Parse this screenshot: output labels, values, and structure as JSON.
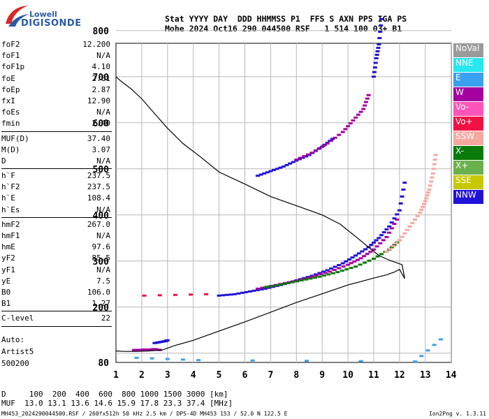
{
  "logo": {
    "line1": "Lowell",
    "line2": "DIGISONDE"
  },
  "header": {
    "line1": "Stat YYYY DAY  DDD HHMMSS P1  FFS S AXN PPS IGA PS",
    "line2": "Mohe 2024 Oct16 290 044500 RSF   1 514 100 03+ B1"
  },
  "params": [
    {
      "k": "foF2",
      "v": "12.200"
    },
    {
      "k": "foF1",
      "v": "N/A"
    },
    {
      "k": "foF1p",
      "v": "4.10"
    },
    {
      "k": "foE",
      "v": "2.81"
    },
    {
      "k": "foEp",
      "v": "2.87"
    },
    {
      "k": "fxI",
      "v": "12.90"
    },
    {
      "k": "foEs",
      "v": "N/A"
    },
    {
      "k": "fmin",
      "v": "2.40",
      "sep": true
    },
    {
      "k": "MUF(D)",
      "v": "37.40"
    },
    {
      "k": "M(D)",
      "v": "3.07"
    },
    {
      "k": "D",
      "v": "N/A",
      "sep": true
    },
    {
      "k": "h`F",
      "v": "237.5"
    },
    {
      "k": "h`F2",
      "v": "237.5"
    },
    {
      "k": "h`E",
      "v": "108.4"
    },
    {
      "k": "h`Es",
      "v": "N/A",
      "sep": true
    },
    {
      "k": "hmF2",
      "v": "267.0"
    },
    {
      "k": "hmF1",
      "v": "N/A"
    },
    {
      "k": "hmE",
      "v": "97.6"
    },
    {
      "k": "yF2",
      "v": "85.5"
    },
    {
      "k": "yF1",
      "v": "N/A"
    },
    {
      "k": "yE",
      "v": "7.5"
    },
    {
      "k": "B0",
      "v": "106.0"
    },
    {
      "k": "B1",
      "v": "1.27",
      "sep": true
    },
    {
      "k": "C-level",
      "v": "22",
      "sep": true
    }
  ],
  "auto": {
    "line1": "Auto:",
    "line2": "Artist5",
    "line3": "500200"
  },
  "legend": [
    {
      "label": "NoVal",
      "color": "#9a9a9a"
    },
    {
      "label": "NNE",
      "color": "#26e8ee"
    },
    {
      "label": "E",
      "color": "#3aa0f0"
    },
    {
      "label": "W",
      "color": "#a3009f"
    },
    {
      "label": "Vo-",
      "color": "#ff55b8"
    },
    {
      "label": "Vo+",
      "color": "#f01044"
    },
    {
      "label": "SSW",
      "color": "#f6a8a0"
    },
    {
      "label": "X-",
      "color": "#0a7a0a"
    },
    {
      "label": "X+",
      "color": "#6ab04c"
    },
    {
      "label": "SSE",
      "color": "#c8c800"
    },
    {
      "label": "NNW",
      "color": "#2012d6"
    }
  ],
  "muf_table": {
    "line1": "D     100  200  400  600  800 1000 1500 3000 [km]",
    "line2": "MUF  13.0 13.1 13.6 14.6 15.9 17.8 23.3 37.4 [MHz]"
  },
  "footer": {
    "left": "MH453_2024290044500.RSF / 260fx512h 50 kHz 2.5 km / DPS-4D MH453 153 / 52.0 N 122.5 E",
    "right": "Ion2Png v. 1.3.11"
  },
  "chart_data": {
    "type": "scatter",
    "xlim": [
      1,
      14
    ],
    "ylim": [
      80,
      900
    ],
    "x_ticks": [
      "1",
      "2",
      "3",
      "4",
      "5",
      "6",
      "7",
      "8",
      "9",
      "10",
      "11",
      "12",
      "13",
      "14"
    ],
    "y_ticks": [
      "80",
      "100",
      "200",
      "300",
      "400",
      "500",
      "600",
      "700",
      "800",
      "900"
    ],
    "grid": true,
    "profile_curve": {
      "x": [
        1.0,
        1.3,
        1.8,
        2.3,
        2.8,
        3.1,
        3.3,
        4.0,
        5.0,
        6.0,
        7.0,
        8.0,
        9.0,
        10.0,
        11.0,
        11.5,
        11.8,
        12.0,
        12.2,
        12.1,
        11.6,
        11.2,
        10.8,
        10.3,
        9.7,
        9.0,
        8.0,
        7.0,
        6.0,
        5.0,
        4.3,
        3.6,
        3.0,
        2.5,
        2.0,
        1.6,
        1.2,
        1.0
      ],
      "y": [
        105,
        104,
        104,
        105,
        107,
        113,
        117,
        128,
        148,
        168,
        189,
        210,
        229,
        248,
        263,
        270,
        276,
        282,
        262,
        292,
        302,
        312,
        330,
        353,
        380,
        400,
        420,
        440,
        467,
        493,
        525,
        555,
        588,
        620,
        652,
        673,
        690,
        700
      ]
    },
    "series": [
      {
        "name": "W",
        "x": [
          1.7,
          1.9,
          2.1,
          2.3,
          2.5,
          2.7
        ],
        "y": [
          107,
          107,
          108,
          108,
          109,
          107
        ]
      },
      {
        "name": "NNW",
        "x": [
          2.5,
          2.7,
          2.9,
          3.0
        ],
        "y": [
          122,
          124,
          126,
          128
        ]
      },
      {
        "name": "NNW",
        "x": [
          5.0,
          5.6,
          6.2,
          6.8,
          7.4,
          8.0,
          8.6,
          9.2,
          9.8,
          10.3,
          10.8,
          11.2,
          11.6,
          12.0,
          12.2
        ],
        "y": [
          225,
          228,
          234,
          240,
          248,
          258,
          268,
          280,
          295,
          312,
          330,
          350,
          375,
          410,
          470
        ]
      },
      {
        "name": "W",
        "x": [
          6.5,
          7.2,
          7.9,
          8.6,
          9.3,
          10.0,
          10.5,
          11.0,
          11.5,
          11.9
        ],
        "y": [
          240,
          248,
          256,
          266,
          277,
          292,
          306,
          325,
          352,
          390
        ]
      },
      {
        "name": "X-",
        "x": [
          6.8,
          7.5,
          8.2,
          8.9,
          9.6,
          10.3,
          11.0,
          11.6,
          12.0
        ],
        "y": [
          243,
          250,
          258,
          266,
          276,
          288,
          305,
          325,
          345
        ]
      },
      {
        "name": "SSW",
        "x": [
          11.5,
          12.0,
          12.4,
          12.8,
          13.0,
          13.15,
          13.3,
          13.4
        ],
        "y": [
          320,
          345,
          375,
          405,
          430,
          455,
          490,
          530
        ]
      },
      {
        "name": "NNW",
        "x": [
          6.5,
          7.0,
          7.5,
          8.0,
          8.5,
          9.0,
          9.4
        ],
        "y": [
          485,
          495,
          505,
          518,
          530,
          548,
          565
        ]
      },
      {
        "name": "W",
        "x": [
          8.0,
          8.6,
          9.2,
          9.8,
          10.2,
          10.6,
          10.8
        ],
        "y": [
          520,
          535,
          555,
          580,
          605,
          630,
          660
        ]
      },
      {
        "name": "NNW",
        "x": [
          11.0,
          11.1,
          11.2,
          11.3
        ],
        "y": [
          700,
          740,
          770,
          825
        ]
      },
      {
        "name": "Vo+",
        "x": [
          2.1,
          4.5
        ],
        "y": [
          225,
          228
        ]
      },
      {
        "name": "E",
        "x": [
          1.8,
          4.2,
          12.6,
          13.6
        ],
        "y": [
          90,
          85,
          82,
          130
        ]
      }
    ]
  }
}
